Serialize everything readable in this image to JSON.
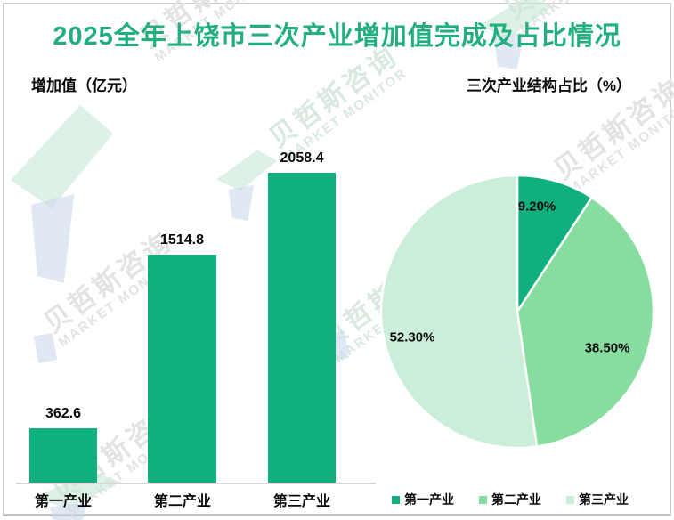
{
  "page": {
    "title": "2025全年上饶市三次产业增加值完成及占比情况"
  },
  "left_panel": {
    "subtitle": "增加值（亿元）"
  },
  "right_panel": {
    "subtitle": "三次产业结构占比（%）"
  },
  "chart_data": [
    {
      "type": "bar",
      "title": "增加值（亿元）",
      "categories": [
        "第一产业",
        "第二产业",
        "第三产业"
      ],
      "values": [
        362.6,
        1514.8,
        2058.4
      ],
      "value_labels": [
        "362.6",
        "1514.8",
        "2058.4"
      ],
      "xlabel": "",
      "ylabel": "增加值（亿元）",
      "ylim": [
        0,
        2200
      ],
      "grid": false,
      "bar_color": "#0FAF80",
      "axis_color": "#D9D9D9"
    },
    {
      "type": "pie",
      "title": "三次产业结构占比（%）",
      "categories": [
        "第一产业",
        "第二产业",
        "第三产业"
      ],
      "values": [
        9.2,
        38.5,
        52.3
      ],
      "slice_labels": [
        "9.20%",
        "38.50%",
        "52.30%"
      ],
      "colors": [
        "#0FAF80",
        "#87DCA0",
        "#CBEED9"
      ],
      "start_angle_deg": 0,
      "direction": "clockwise",
      "legend_position": "bottom"
    }
  ],
  "legend": {
    "items": [
      {
        "label": "第一产业",
        "color": "#0FAF80"
      },
      {
        "label": "第二产业",
        "color": "#87DCA0"
      },
      {
        "label": "第三产业",
        "color": "#CBEED9"
      }
    ]
  },
  "watermark": {
    "cn": "贝哲斯咨询",
    "en": "MARKET MONITOR"
  },
  "colors": {
    "title": "#23AE7E",
    "bar": "#0FAF80",
    "pie_1": "#0FAF80",
    "pie_2": "#87DCA0",
    "pie_3": "#CBEED9",
    "frame_border": "#CBCBCB",
    "axis": "#D9D9D9",
    "text": "#0B0B0B",
    "watermark_gray": "#E2E4E3",
    "watermark_green": "#D9E9DF"
  }
}
